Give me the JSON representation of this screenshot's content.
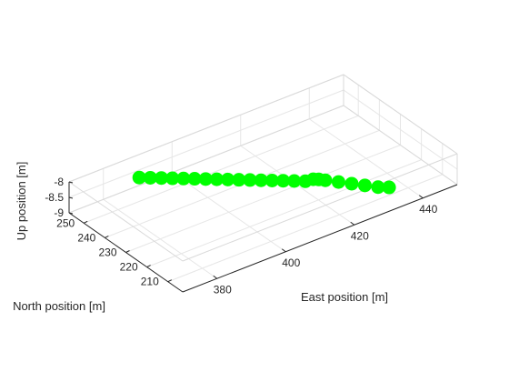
{
  "chart_data": {
    "type": "scatter",
    "title": "",
    "xlabel": "East position [m]",
    "ylabel": "North position [m]",
    "zlabel": "Up position [m]",
    "xlim": [
      370,
      450
    ],
    "ylim": [
      203,
      257
    ],
    "zlim": [
      -9,
      -8
    ],
    "x_ticks": [
      380,
      400,
      420,
      440
    ],
    "y_ticks": [
      210,
      220,
      230,
      240,
      250
    ],
    "z_ticks": [
      -9,
      -8.5,
      -8
    ],
    "z_tick_labels": [
      "-9",
      "-8.5",
      "-8"
    ],
    "grid": true,
    "box": true,
    "marker_color": "#00ff00",
    "series": [
      {
        "x": [
          388,
          390,
          392,
          394,
          396,
          398,
          400,
          402,
          404,
          406,
          408,
          410,
          412,
          414,
          416,
          418,
          420,
          421,
          422,
          424,
          426,
          428,
          430,
          432
        ],
        "y": [
          253,
          251,
          249,
          247,
          245,
          243,
          241,
          239,
          237,
          235,
          233,
          231,
          229,
          227,
          225,
          223,
          222.5,
          221.5,
          220,
          217,
          214,
          211,
          208,
          206
        ],
        "z": [
          -8.45,
          -8.45,
          -8.45,
          -8.45,
          -8.45,
          -8.45,
          -8.45,
          -8.45,
          -8.45,
          -8.45,
          -8.45,
          -8.45,
          -8.45,
          -8.45,
          -8.45,
          -8.45,
          -8.45,
          -8.45,
          -8.45,
          -8.45,
          -8.45,
          -8.45,
          -8.45,
          -8.45
        ]
      }
    ]
  }
}
